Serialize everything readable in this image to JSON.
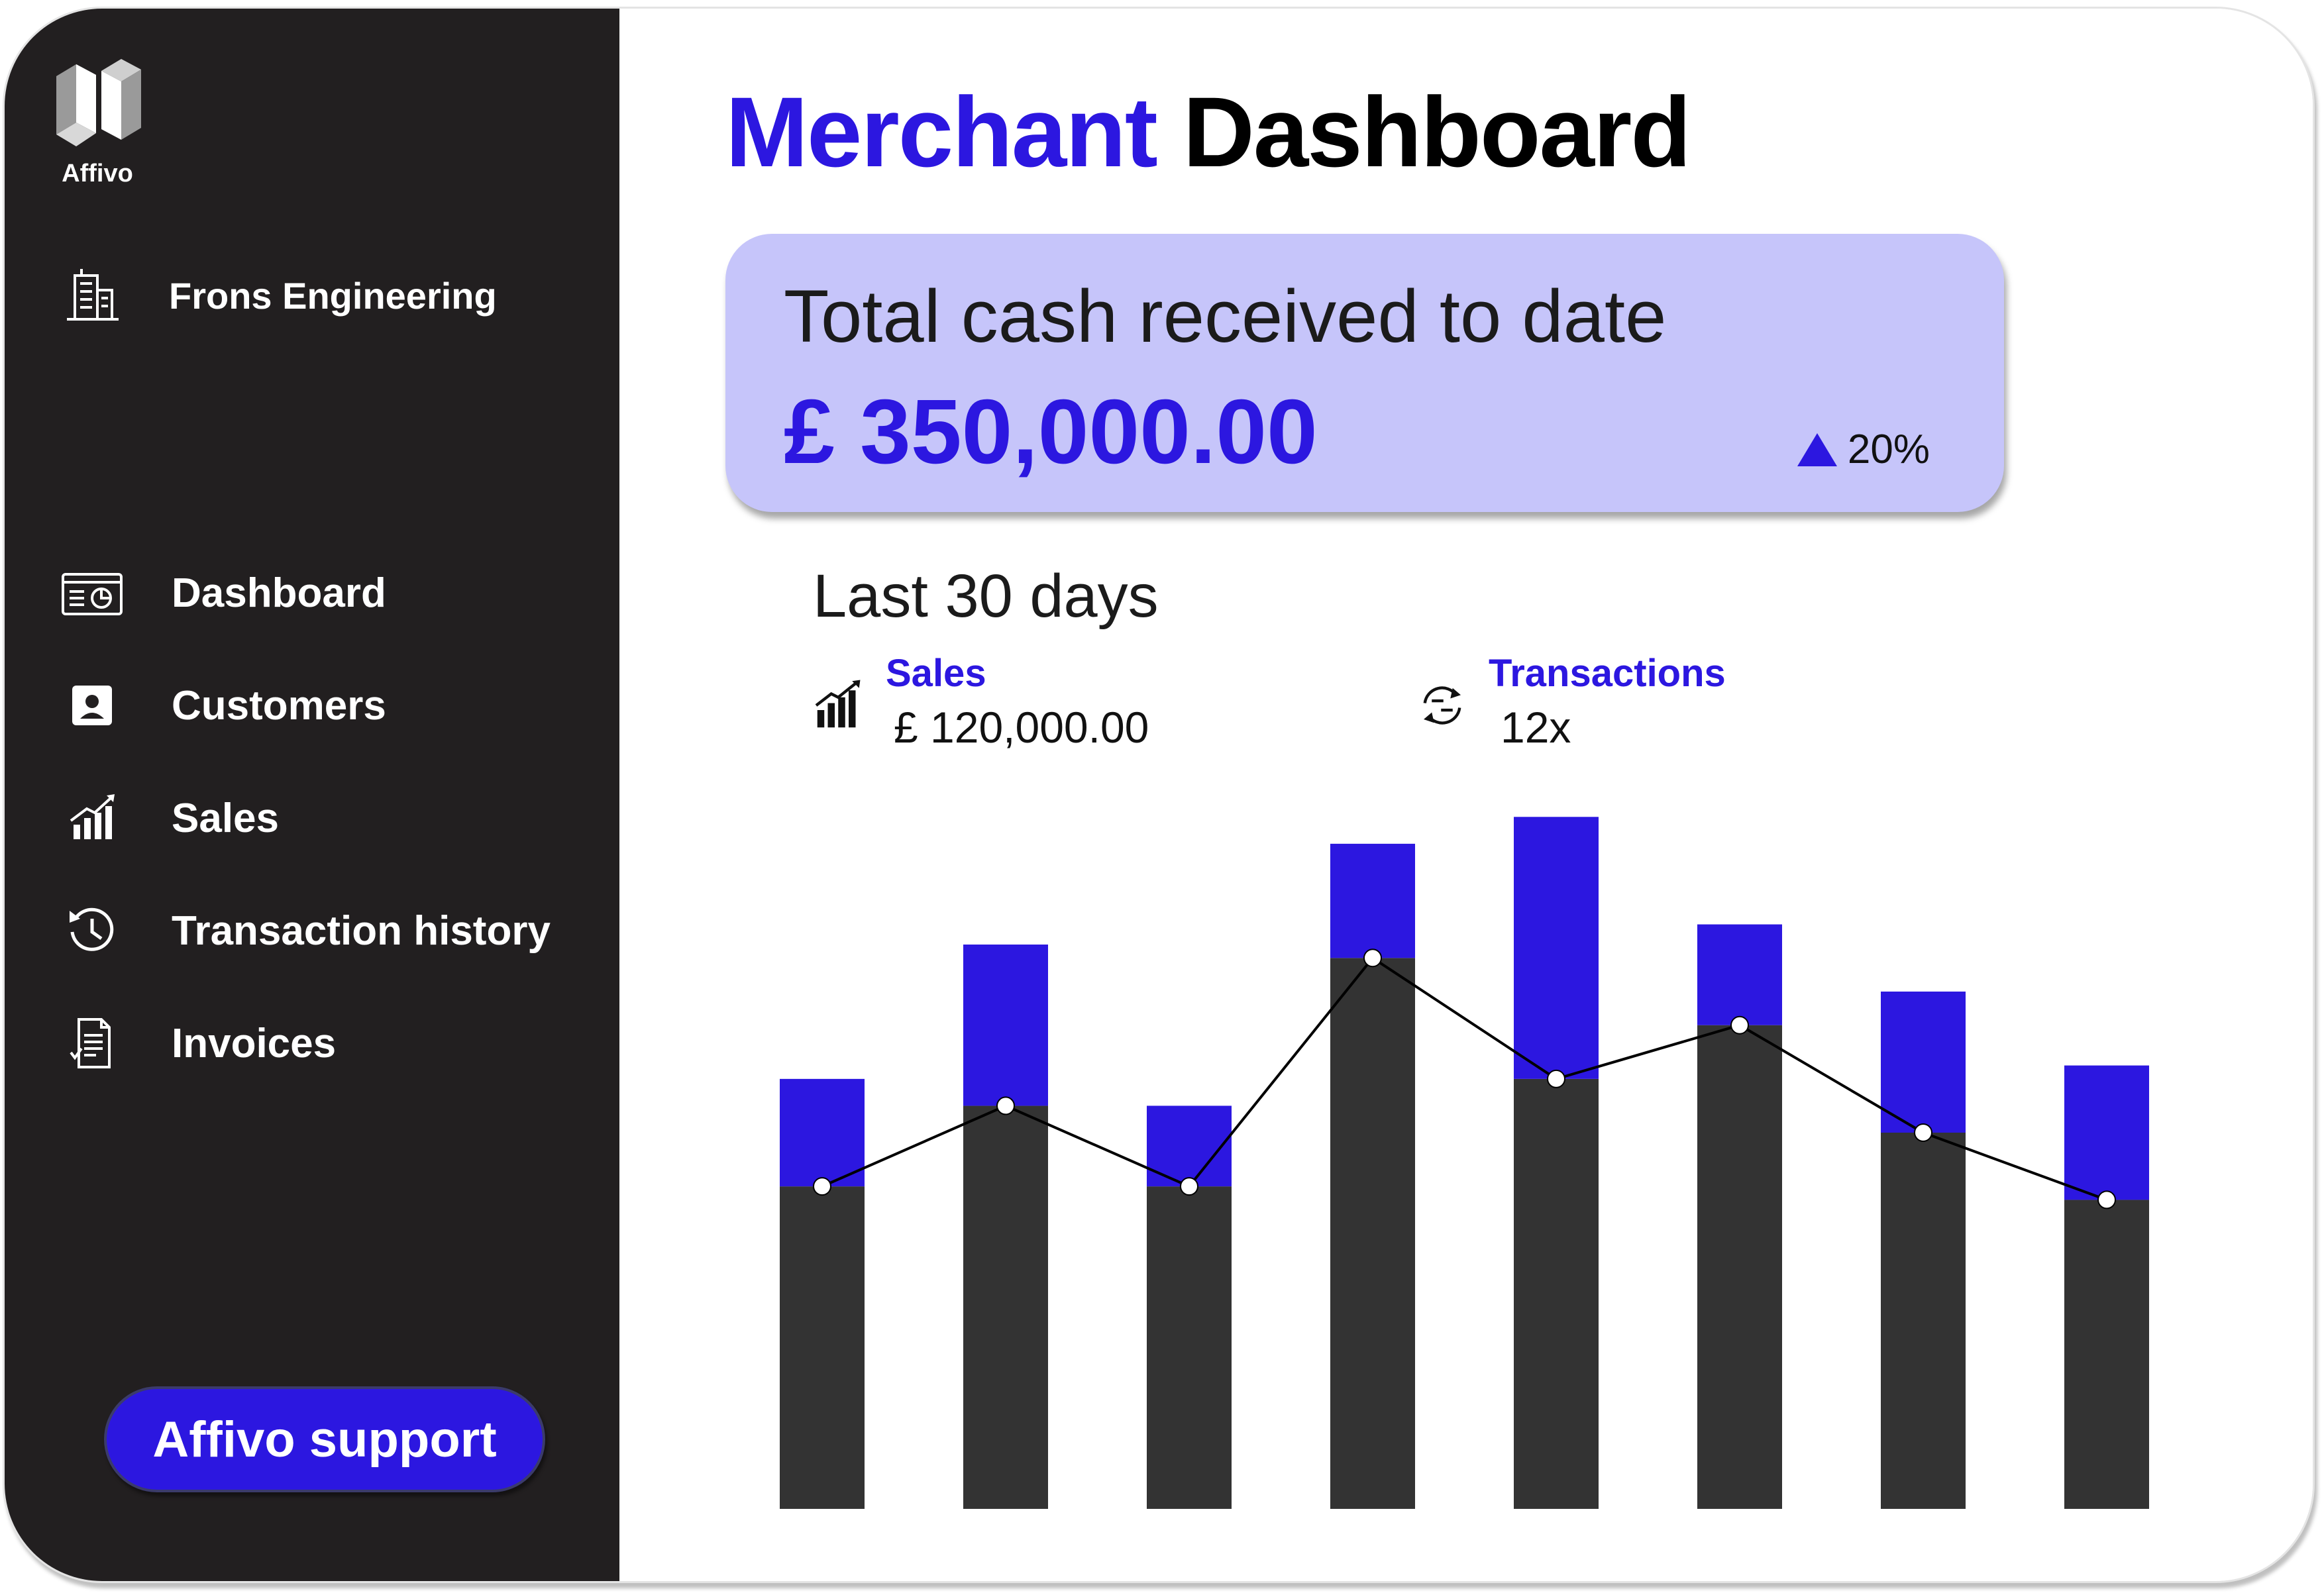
{
  "app": {
    "brand_name": "Affivo",
    "company_name": "Frons Engineering",
    "support_button_label": "Affivo support"
  },
  "colors": {
    "accent": "#2c17e0",
    "sidebar_bg": "#221f20",
    "card_bg": "#c6c5fa",
    "bar_dark": "#333333"
  },
  "sidebar": {
    "items": [
      {
        "label": "Dashboard",
        "icon": "dashboard-icon"
      },
      {
        "label": "Customers",
        "icon": "contact-card-icon"
      },
      {
        "label": "Sales",
        "icon": "sales-chart-icon"
      },
      {
        "label": "Transaction history",
        "icon": "history-icon"
      },
      {
        "label": "Invoices",
        "icon": "invoice-icon"
      }
    ]
  },
  "header": {
    "title_accent": "Merchant",
    "title_rest": "Dashboard"
  },
  "summary": {
    "label": "Total cash received to date",
    "value": "£ 350,000.00",
    "change": "20%",
    "change_direction": "up"
  },
  "period": {
    "label": "Last 30 days",
    "sales": {
      "label": "Sales",
      "value": "£ 120,000.00",
      "icon": "sales-chart-icon"
    },
    "transactions": {
      "label": "Transactions",
      "value": "12x",
      "icon": "refresh-arrows-icon"
    }
  },
  "chart_data": {
    "type": "bar",
    "stacked": true,
    "series": [
      {
        "values": [
          48,
          60,
          48,
          82,
          64,
          72,
          56,
          46
        ],
        "color": "#333333"
      },
      {
        "values": [
          16,
          24,
          12,
          17,
          39,
          15,
          21,
          20
        ],
        "color": "#2c17e0"
      }
    ],
    "line": {
      "values": [
        48,
        60,
        48,
        82,
        64,
        72,
        56,
        46
      ]
    },
    "ylim": [
      0,
      105
    ],
    "grid": false
  }
}
